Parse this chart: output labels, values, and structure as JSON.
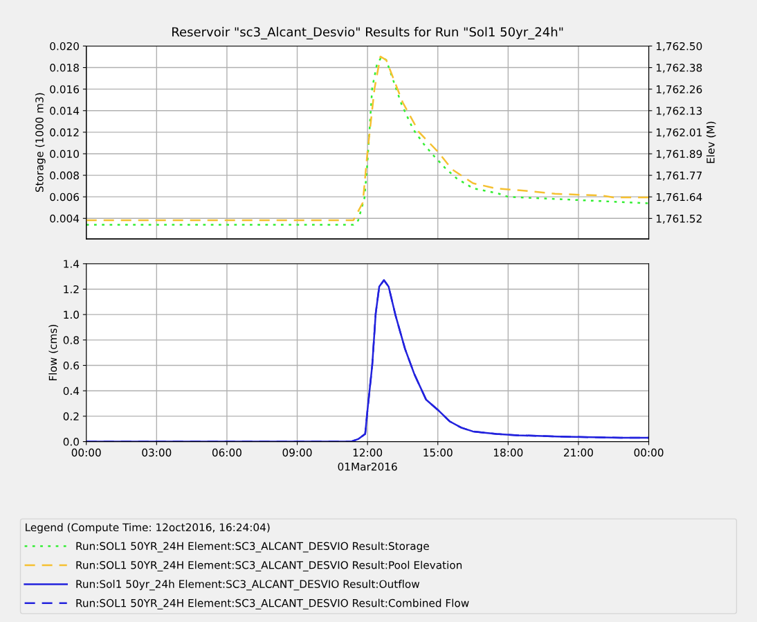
{
  "chart_data": [
    {
      "type": "line",
      "title": "Reservoir \"sc3_Alcant_Desvio\" Results for Run \"Sol1 50yr_24h\"",
      "ylabel": "Storage (1000 m3)",
      "y2label": "Elev (M)",
      "xlim": [
        0,
        24
      ],
      "xticks": [
        {
          "value": 0,
          "label": null
        },
        {
          "value": 3,
          "label": null
        },
        {
          "value": 6,
          "label": null
        },
        {
          "value": 9,
          "label": null
        },
        {
          "value": 12,
          "label": null
        },
        {
          "value": 15,
          "label": null
        },
        {
          "value": 18,
          "label": null
        },
        {
          "value": 21,
          "label": null
        },
        {
          "value": 24,
          "label": null
        }
      ],
      "ylim": [
        0.0021,
        0.02
      ],
      "yticks": [
        {
          "value": 0.004,
          "label": "0.004"
        },
        {
          "value": 0.006,
          "label": "0.006"
        },
        {
          "value": 0.008,
          "label": "0.008"
        },
        {
          "value": 0.01,
          "label": "0.010"
        },
        {
          "value": 0.012,
          "label": "0.012"
        },
        {
          "value": 0.014,
          "label": "0.014"
        },
        {
          "value": 0.016,
          "label": "0.016"
        },
        {
          "value": 0.018,
          "label": "0.018"
        },
        {
          "value": 0.02,
          "label": "0.020"
        }
      ],
      "y2lim": [
        1761.404,
        1762.5
      ],
      "y2ticks": [
        {
          "value": 1761.52,
          "label": "1,761.52"
        },
        {
          "value": 1761.6425,
          "label": "1,761.64"
        },
        {
          "value": 1761.765,
          "label": "1,761.77"
        },
        {
          "value": 1761.8875,
          "label": "1,761.89"
        },
        {
          "value": 1762.01,
          "label": "1,762.01"
        },
        {
          "value": 1762.1325,
          "label": "1,762.13"
        },
        {
          "value": 1762.255,
          "label": "1,762.26"
        },
        {
          "value": 1762.3775,
          "label": "1,762.38"
        },
        {
          "value": 1762.5,
          "label": "1,762.50"
        }
      ],
      "tick_labels": "y",
      "grid": true,
      "legend": "bottom",
      "series": [
        {
          "name": "Run:SOL1 50YR_24H Element:SC3_ALCANT_DESVIO Result:Storage",
          "color": "#33ee33",
          "line_style": "dotted",
          "x": [
            0,
            11.4,
            11.6,
            11.87,
            12.0,
            12.2,
            12.4,
            12.6,
            12.8,
            13.1,
            13.45,
            13.94,
            14.4,
            14.83,
            15.3,
            15.81,
            16.5,
            17.59,
            18.0,
            19.0,
            20.0,
            21.0,
            22.0,
            23.0,
            24.0
          ],
          "values": [
            0.0034,
            0.0034,
            0.0038,
            0.0059,
            0.0093,
            0.0161,
            0.0183,
            0.019,
            0.0187,
            0.0168,
            0.0146,
            0.0123,
            0.0109,
            0.0098,
            0.0087,
            0.0077,
            0.0068,
            0.0063,
            0.006,
            0.0059,
            0.0058,
            0.0057,
            0.0056,
            0.0055,
            0.0054
          ]
        },
        {
          "name": "Run:SOL1 50YR_24H Element:SC3_ALCANT_DESVIO Result:Pool Elevation",
          "color": "#f5c030",
          "line_style": "dashed",
          "axis": "y2",
          "x": [
            0,
            11.4,
            11.8,
            12.0,
            12.3,
            12.55,
            12.8,
            13.5,
            14.2,
            15.0,
            15.6,
            16.5,
            17.5,
            18.5,
            20.0,
            22.0,
            22.5,
            24.0
          ],
          "values": [
            1761.51,
            1761.51,
            1761.61,
            1761.9,
            1762.26,
            1762.44,
            1762.42,
            1762.18,
            1762.01,
            1761.9,
            1761.8,
            1761.72,
            1761.69,
            1761.68,
            1761.66,
            1761.65,
            1761.64,
            1761.64
          ]
        }
      ]
    },
    {
      "type": "line",
      "ylabel": "Flow (cms)",
      "xlabel": "01Mar2016",
      "legend_title": "Legend (Compute Time: 12oct2016, 16:24:04)",
      "xlim": [
        0,
        24
      ],
      "xticks": [
        {
          "value": 0,
          "label": "00:00"
        },
        {
          "value": 3,
          "label": "03:00"
        },
        {
          "value": 6,
          "label": "06:00"
        },
        {
          "value": 9,
          "label": "09:00"
        },
        {
          "value": 12,
          "label": "12:00"
        },
        {
          "value": 15,
          "label": "15:00"
        },
        {
          "value": 18,
          "label": "18:00"
        },
        {
          "value": 21,
          "label": "21:00"
        },
        {
          "value": 24,
          "label": "00:00"
        }
      ],
      "ylim": [
        0,
        1.4
      ],
      "yticks": [
        {
          "value": 0,
          "label": "0.0"
        },
        {
          "value": 0.2,
          "label": "0.2"
        },
        {
          "value": 0.4,
          "label": "0.4"
        },
        {
          "value": 0.6,
          "label": "0.6"
        },
        {
          "value": 0.8,
          "label": "0.8"
        },
        {
          "value": 1.0,
          "label": "1.0"
        },
        {
          "value": 1.2,
          "label": "1.2"
        },
        {
          "value": 1.4,
          "label": "1.4"
        }
      ],
      "grid": true,
      "legend": "bottom",
      "series": [
        {
          "name": "Run:Sol1 50yr_24h Element:SC3_ALCANT_DESVIO Result:Outflow",
          "color": "#2222dd",
          "line_style": "solid",
          "x": [
            0,
            11.3,
            11.6,
            11.9,
            12.0,
            12.2,
            12.35,
            12.5,
            12.7,
            12.9,
            13.2,
            13.6,
            14.0,
            14.5,
            15.0,
            15.5,
            16.0,
            16.5,
            17.5,
            18.4,
            20.1,
            22.8,
            24.0
          ],
          "values": [
            0,
            0,
            0.02,
            0.06,
            0.25,
            0.6,
            1.01,
            1.22,
            1.27,
            1.22,
            0.99,
            0.73,
            0.53,
            0.33,
            0.25,
            0.16,
            0.11,
            0.08,
            0.06,
            0.05,
            0.04,
            0.03,
            0.03
          ]
        },
        {
          "name": "Run:SOL1 50YR_24H Element:SC3_ALCANT_DESVIO Result:Combined Flow",
          "color": "#2222dd",
          "line_style": "dashed",
          "x": [
            0,
            11.3,
            11.6,
            11.9,
            12.0,
            12.2,
            12.35,
            12.5,
            12.7,
            12.9,
            13.2,
            13.6,
            14.0,
            14.5,
            15.0,
            15.5,
            16.0,
            16.5,
            17.5,
            18.4,
            20.1,
            22.8,
            24.0
          ],
          "values": [
            0,
            0,
            0.02,
            0.06,
            0.25,
            0.6,
            1.01,
            1.22,
            1.27,
            1.22,
            0.99,
            0.73,
            0.53,
            0.33,
            0.25,
            0.16,
            0.11,
            0.08,
            0.06,
            0.05,
            0.04,
            0.03,
            0.03
          ]
        }
      ]
    }
  ]
}
